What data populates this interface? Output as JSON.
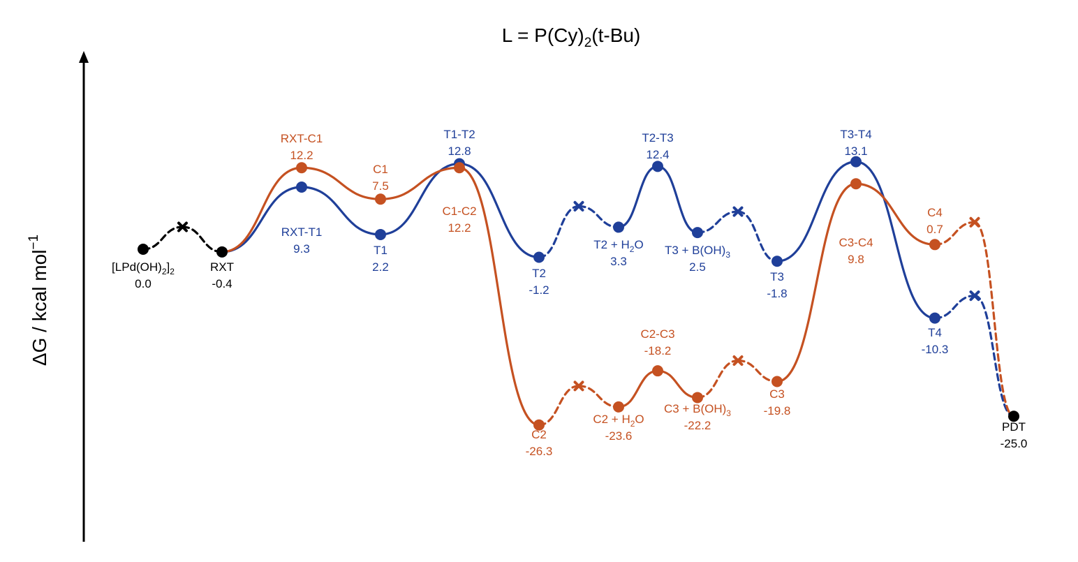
{
  "chart_data": {
    "type": "line",
    "title": {
      "text": "L = P(Cy)",
      "sub": "2",
      "rest": "(t-Bu)"
    },
    "ylabel": {
      "text": "ΔG / kcal mol",
      "sup": "−1"
    },
    "colors": {
      "common": "#000000",
      "T": "#1f3f99",
      "C": "#c55121"
    },
    "common": [
      {
        "label": "[LPd(OH)",
        "sub": "2",
        "tail": "]",
        "sub2": "2",
        "value": "0.0"
      },
      {
        "label": "RXT",
        "value": "-0.4"
      },
      {
        "label": "PDT",
        "value": "-25.0"
      }
    ],
    "series": [
      {
        "key": "T",
        "points": [
          {
            "label": "RXT-T1",
            "value": "9.3"
          },
          {
            "label": "T1",
            "value": "2.2"
          },
          {
            "label": "T1-T2",
            "value": "12.8"
          },
          {
            "label": "T2",
            "value": "-1.2"
          },
          {
            "label": "T2 + H",
            "sub": "2",
            "tail": "O",
            "value": "3.3"
          },
          {
            "label": "T2-T3",
            "value": "12.4"
          },
          {
            "label": "T3 + B(OH)",
            "sub": "3",
            "value": "2.5"
          },
          {
            "label": "T3",
            "value": "-1.8"
          },
          {
            "label": "T3-T4",
            "value": "13.1"
          },
          {
            "label": "T4",
            "value": "-10.3"
          }
        ]
      },
      {
        "key": "C",
        "points": [
          {
            "label": "RXT-C1",
            "value": "12.2"
          },
          {
            "label": "C1",
            "value": "7.5"
          },
          {
            "label": "C1-C2",
            "value": "12.2"
          },
          {
            "label": "C2",
            "value": "-26.3"
          },
          {
            "label": "C2 + H",
            "sub": "2",
            "tail": "O",
            "value": "-23.6"
          },
          {
            "label": "C2-C3",
            "value": "-18.2"
          },
          {
            "label": "C3 + B(OH)",
            "sub": "3",
            "value": "-22.2"
          },
          {
            "label": "C3",
            "value": "-19.8"
          },
          {
            "label": "C3-C4",
            "value": "9.8"
          },
          {
            "label": "C4",
            "value": "0.7"
          }
        ]
      }
    ]
  }
}
